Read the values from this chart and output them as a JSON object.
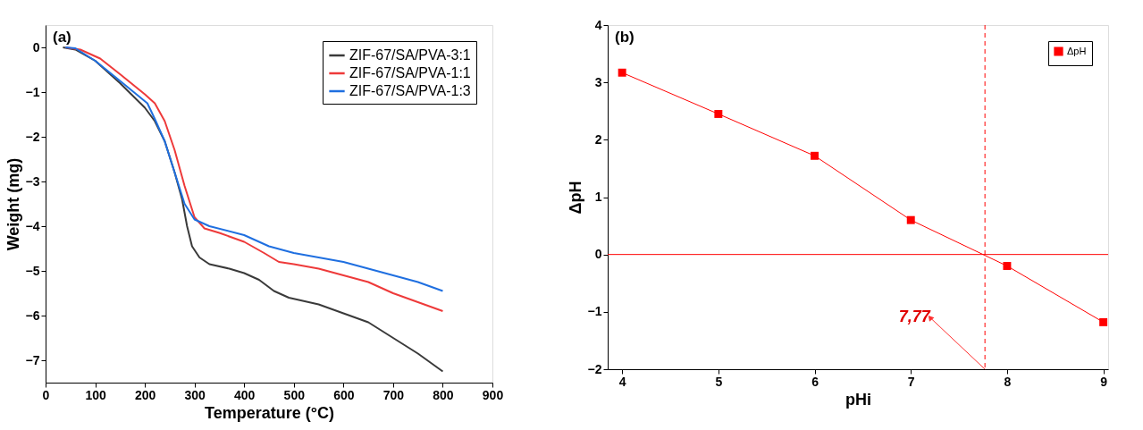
{
  "chart_data": [
    {
      "type": "line",
      "title": "(a)",
      "xlabel": "Temperature (°C)",
      "ylabel": "Weight (mg)",
      "xlim": [
        0,
        900
      ],
      "ylim": [
        -7.5,
        0.5
      ],
      "xticks": [
        0,
        100,
        200,
        300,
        400,
        500,
        600,
        700,
        800,
        900
      ],
      "yticks": [
        -7,
        -6,
        -5,
        -4,
        -3,
        -2,
        -1,
        0
      ],
      "grid": false,
      "legend": "top right",
      "marker": "none",
      "line_style": "solid",
      "series": [
        {
          "name": "ZIF-67/SA/PVA-3:1",
          "color": "#3a3a3a",
          "x": [
            35,
            60,
            100,
            150,
            200,
            220,
            240,
            260,
            275,
            285,
            295,
            310,
            330,
            370,
            400,
            430,
            460,
            490,
            550,
            600,
            650,
            700,
            750,
            800
          ],
          "values": [
            0,
            -0.05,
            -0.3,
            -0.8,
            -1.35,
            -1.65,
            -2.1,
            -2.8,
            -3.4,
            -4.0,
            -4.45,
            -4.7,
            -4.85,
            -4.95,
            -5.05,
            -5.2,
            -5.45,
            -5.6,
            -5.75,
            -5.95,
            -6.15,
            -6.5,
            -6.85,
            -7.25
          ]
        },
        {
          "name": "ZIF-67/SA/PVA-1:1",
          "color": "#ee3a3a",
          "x": [
            40,
            70,
            100,
            110,
            150,
            200,
            220,
            240,
            260,
            280,
            300,
            320,
            350,
            400,
            440,
            470,
            500,
            550,
            600,
            650,
            700,
            750,
            800
          ],
          "values": [
            0,
            -0.05,
            -0.2,
            -0.25,
            -0.6,
            -1.05,
            -1.25,
            -1.65,
            -2.3,
            -3.1,
            -3.8,
            -4.05,
            -4.15,
            -4.35,
            -4.6,
            -4.8,
            -4.85,
            -4.95,
            -5.1,
            -5.25,
            -5.5,
            -5.7,
            -5.9
          ]
        },
        {
          "name": "ZIF-67/SA/PVA-1:3",
          "color": "#1f6fe0",
          "x": [
            40,
            60,
            100,
            150,
            205,
            220,
            240,
            260,
            280,
            300,
            330,
            400,
            450,
            500,
            550,
            600,
            650,
            700,
            750,
            800
          ],
          "values": [
            0,
            -0.02,
            -0.3,
            -0.75,
            -1.25,
            -1.6,
            -2.1,
            -2.8,
            -3.5,
            -3.85,
            -4.0,
            -4.2,
            -4.45,
            -4.6,
            -4.7,
            -4.8,
            -4.95,
            -5.1,
            -5.25,
            -5.45
          ]
        }
      ]
    },
    {
      "type": "line",
      "title": "(b)",
      "xlabel": "pHi",
      "ylabel": "ΔpH",
      "xlim": [
        3.85,
        9.05
      ],
      "ylim": [
        -2,
        4
      ],
      "xticks": [
        4,
        5,
        6,
        7,
        8,
        9
      ],
      "yticks": [
        -2,
        -1,
        0,
        1,
        2,
        3,
        4
      ],
      "grid": false,
      "legend": "top right",
      "marker": "square",
      "line_style": "solid",
      "series": [
        {
          "name": "ΔpH",
          "color": "#ff0000",
          "x": [
            4,
            5,
            6,
            7,
            8,
            9
          ],
          "values": [
            3.17,
            2.45,
            1.72,
            0.6,
            -0.2,
            -1.18
          ]
        }
      ],
      "ref_lines": [
        {
          "axis": "y",
          "value": 0,
          "color": "#ff0000",
          "line_style": "solid"
        },
        {
          "axis": "x",
          "value": 7.77,
          "color": "#ff0000",
          "line_style": "dashed"
        }
      ],
      "annotations": [
        {
          "text": "7,77",
          "x": 7.2,
          "y": -1.1
        }
      ]
    }
  ]
}
